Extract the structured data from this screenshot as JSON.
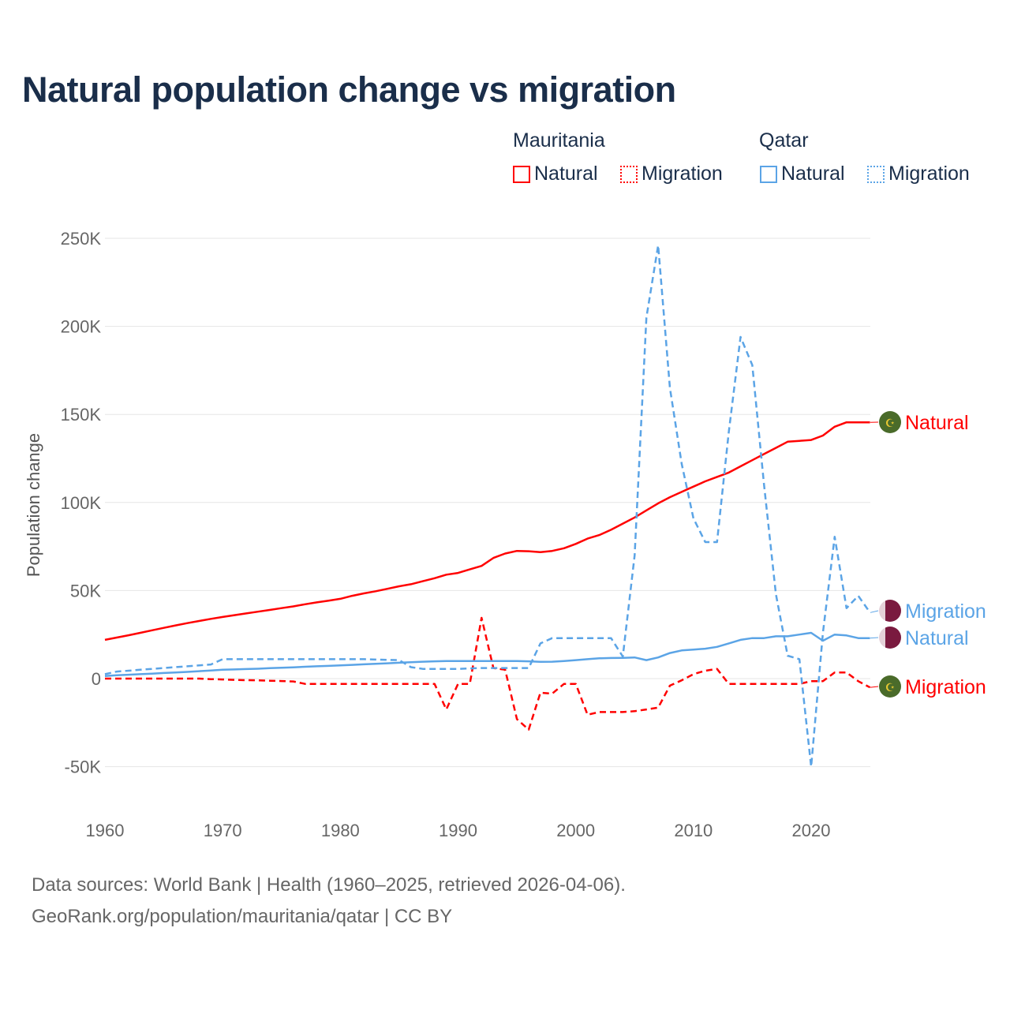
{
  "chart_data": {
    "type": "line",
    "title": "Natural population change vs migration",
    "xlabel": "",
    "ylabel": "Population change",
    "xlim": [
      1960,
      2025
    ],
    "ylim": [
      -70000,
      260000
    ],
    "x_ticks": [
      1960,
      1970,
      1980,
      1990,
      2000,
      2010,
      2020
    ],
    "x_tick_labels": [
      "1960",
      "1970",
      "1980",
      "1990",
      "2000",
      "2010",
      "2020"
    ],
    "y_ticks": [
      -50000,
      0,
      50000,
      100000,
      150000,
      200000,
      250000
    ],
    "y_tick_labels": [
      "-50K",
      "0",
      "50K",
      "100K",
      "150K",
      "200K",
      "250K"
    ],
    "grid": true,
    "legend": {
      "placement": "top-right",
      "groups": [
        {
          "name": "Mauritania",
          "items": [
            "Natural",
            "Migration"
          ]
        },
        {
          "name": "Qatar",
          "items": [
            "Natural",
            "Migration"
          ]
        }
      ]
    },
    "x_start": 1960,
    "series": [
      {
        "name": "Mauritania Natural",
        "end_label": "Natural",
        "country": "Mauritania",
        "color": "#ff0000",
        "dashed": false,
        "values": [
          22000,
          23300,
          24600,
          26000,
          27400,
          28800,
          30200,
          31500,
          32700,
          33900,
          35000,
          36000,
          37000,
          38000,
          39000,
          40000,
          41000,
          42200,
          43300,
          44200,
          45300,
          47000,
          48400,
          49600,
          51000,
          52400,
          53600,
          55300,
          57000,
          59000,
          60000,
          62000,
          64000,
          68500,
          71000,
          72500,
          72300,
          71800,
          72500,
          74000,
          76500,
          79500,
          81500,
          84500,
          88000,
          91500,
          95500,
          99500,
          103000,
          106000,
          109000,
          112000,
          114500,
          117000,
          120500,
          124000,
          127500,
          131000,
          134500,
          135000,
          135500,
          138000,
          143000,
          145500,
          145500,
          145500
        ]
      },
      {
        "name": "Mauritania Migration",
        "end_label": "Migration",
        "country": "Mauritania",
        "color": "#ff0000",
        "dashed": true,
        "values": [
          0,
          0,
          0,
          0,
          0,
          0,
          0,
          0,
          0,
          -300,
          -500,
          -700,
          -900,
          -1000,
          -1200,
          -1400,
          -1600,
          -3000,
          -3000,
          -3000,
          -3000,
          -3000,
          -3000,
          -3000,
          -3000,
          -3000,
          -3000,
          -3000,
          -3000,
          -17500,
          -3000,
          -3000,
          34500,
          6000,
          5000,
          -23000,
          -29000,
          -8000,
          -8500,
          -3000,
          -3000,
          -20500,
          -19000,
          -19000,
          -19000,
          -18500,
          -17500,
          -16500,
          -4000,
          -1000,
          2500,
          4500,
          5500,
          -3000,
          -3000,
          -3000,
          -3000,
          -3000,
          -3000,
          -3000,
          -1500,
          -1500,
          3500,
          3500,
          -1500,
          -5000
        ]
      },
      {
        "name": "Qatar Natural",
        "end_label": "Natural",
        "country": "Qatar",
        "color": "#5ba4e6",
        "dashed": false,
        "values": [
          1500,
          1900,
          2200,
          2500,
          2800,
          3200,
          3500,
          3800,
          4200,
          4600,
          5000,
          5200,
          5400,
          5600,
          5900,
          6200,
          6400,
          6700,
          7000,
          7200,
          7500,
          7800,
          8100,
          8400,
          8700,
          9000,
          9300,
          9600,
          9800,
          10000,
          10000,
          10000,
          10000,
          10000,
          10000,
          10000,
          9800,
          9500,
          9600,
          10000,
          10500,
          11000,
          11500,
          11700,
          11800,
          12000,
          10500,
          12000,
          14500,
          16000,
          16500,
          17000,
          18000,
          20000,
          22000,
          23000,
          23000,
          24000,
          24000,
          25000,
          26000,
          21500,
          25000,
          24500,
          23000,
          23000
        ]
      },
      {
        "name": "Qatar Migration",
        "end_label": "Migration",
        "country": "Qatar",
        "color": "#5ba4e6",
        "dashed": true,
        "values": [
          2500,
          4000,
          4500,
          5000,
          5500,
          6000,
          6500,
          7000,
          7500,
          8000,
          11000,
          11000,
          11000,
          11000,
          11000,
          11000,
          11000,
          11000,
          11000,
          11000,
          11000,
          11000,
          11000,
          10800,
          10600,
          10500,
          6500,
          5500,
          5500,
          5500,
          5500,
          5800,
          6000,
          6000,
          6000,
          6000,
          6000,
          20000,
          23000,
          23000,
          23000,
          23000,
          23000,
          23000,
          12500,
          70000,
          205000,
          246000,
          165000,
          122000,
          91000,
          77500,
          77500,
          140000,
          194000,
          178000,
          110000,
          48000,
          13000,
          11000,
          -50000,
          26000,
          80500,
          40000,
          47000,
          37500
        ]
      }
    ]
  },
  "footer": {
    "line1": "Data sources: World Bank | Health (1960–2025, retrieved 2026-04-06).",
    "line2": "GeoRank.org/population/mauritania/qatar | CC BY"
  }
}
